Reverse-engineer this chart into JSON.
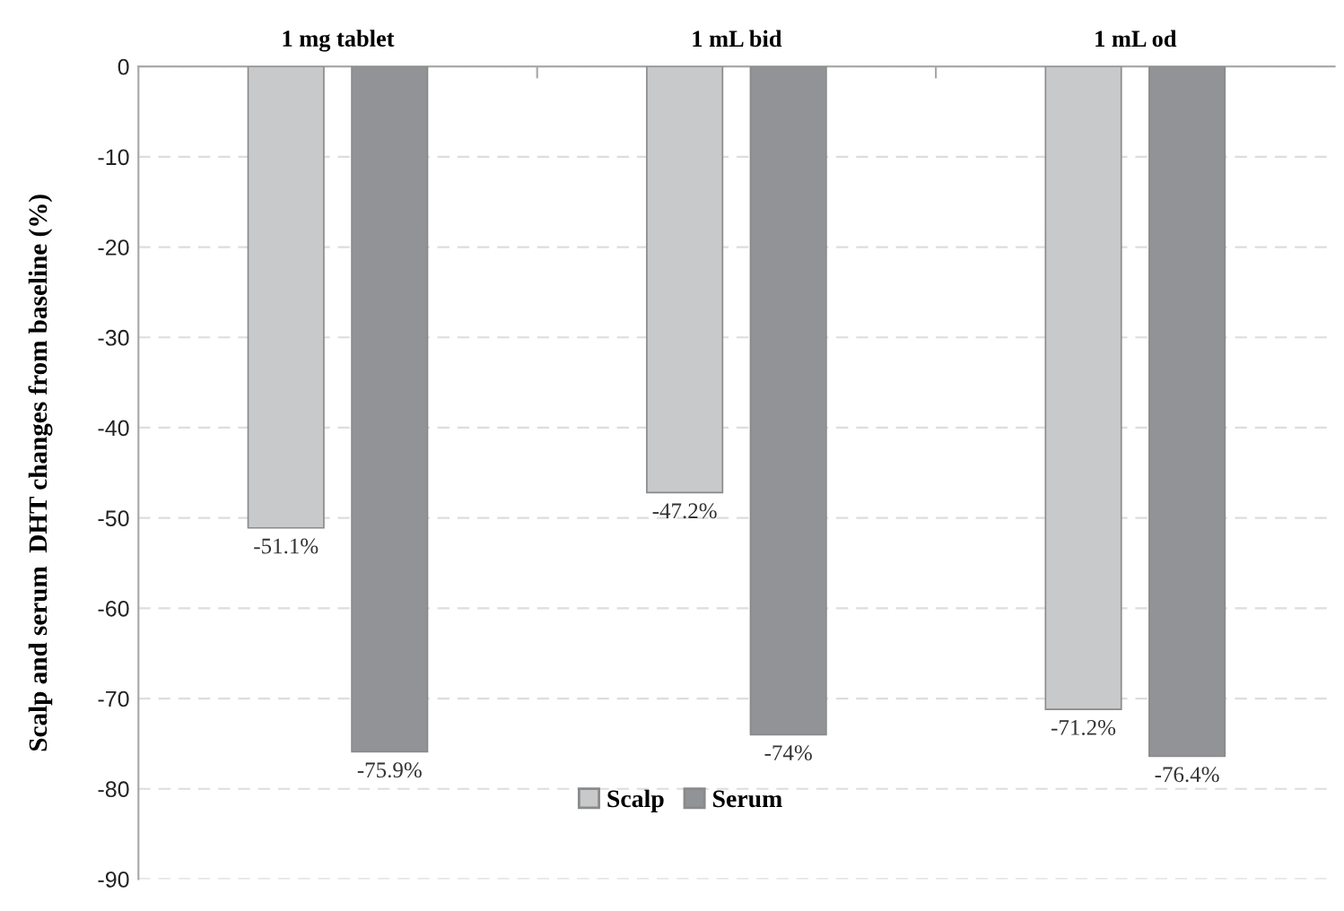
{
  "chart_data": {
    "type": "bar",
    "ylabel": "Scalp and serum  DHT changes from baseline (%)",
    "categories": [
      "1 mg tablet",
      "1 mL bid",
      "1 mL od"
    ],
    "series": [
      {
        "name": "Scalp",
        "color": "#c8c9cb",
        "values": [
          -51.1,
          -47.2,
          -71.2
        ],
        "value_labels": [
          "-51.1%",
          "-47.2%",
          "-71.2%"
        ]
      },
      {
        "name": "Serum",
        "color": "#929396",
        "values": [
          -75.9,
          -74,
          -76.4
        ],
        "value_labels": [
          "-75.9%",
          "-74%",
          "-76.4%"
        ]
      }
    ],
    "ylim": [
      -90,
      0
    ],
    "yticks": [
      0,
      -10,
      -20,
      -30,
      -40,
      -50,
      -60,
      -70,
      -80,
      -90
    ],
    "grid": "y",
    "legend": "bottom"
  }
}
